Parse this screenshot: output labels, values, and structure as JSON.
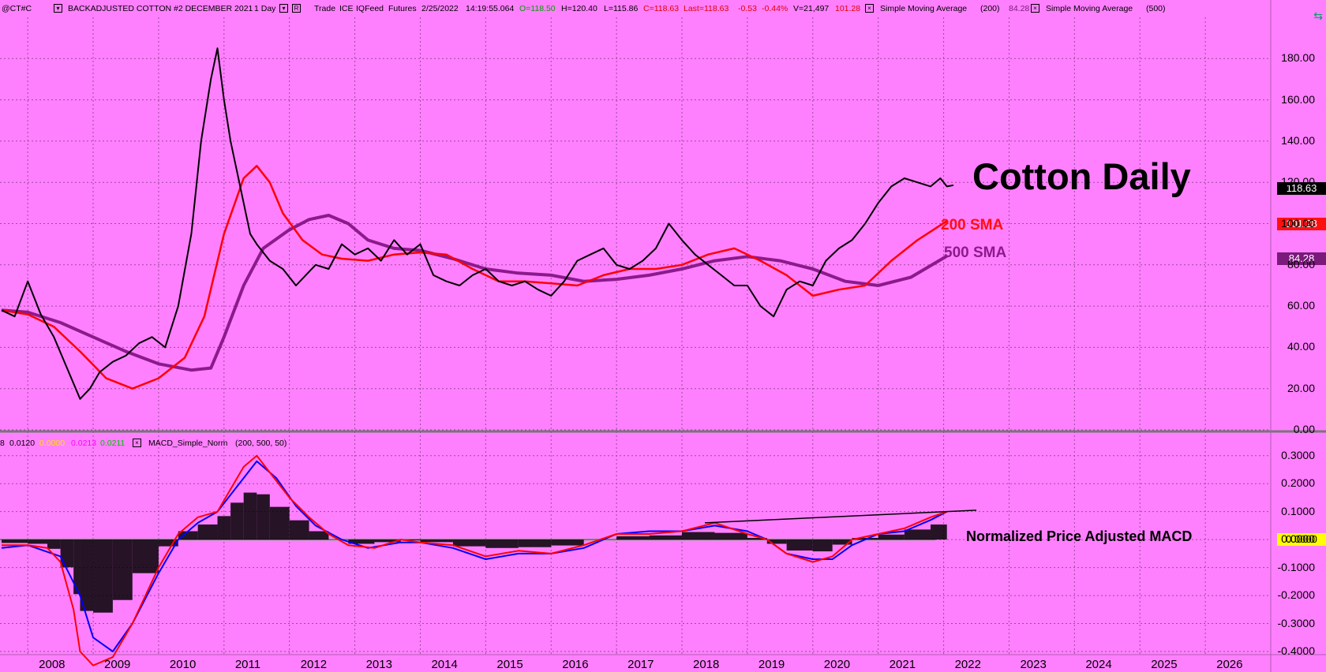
{
  "header": {
    "symbol": "@CT#C",
    "title": "BACKADJUSTED COTTON #2 DECEMBER 2021",
    "interval": "1 Day",
    "mode": "Trade",
    "exchange": "ICE",
    "feed": "IQFeed",
    "type": "Futures",
    "date": "2/25/2022",
    "time": "14:19:55.064",
    "open": "O=118.50",
    "high": "H=120.40",
    "low": "L=115.86",
    "close": "C=118.63",
    "last": "Last=118.63",
    "change": "-0.53",
    "change_pct": "-0.44%",
    "volume": "V=21,497",
    "sma200_value": "101.28",
    "sma1_label": "Simple Moving Average",
    "sma1_len": "(200)",
    "sma500_value": "84.28",
    "sma2_label": "Simple Moving Average",
    "sma2_len": "(500)"
  },
  "macd_header": {
    "v0": "8",
    "v1": "0.0120",
    "v2": "0.0000",
    "v3": "0.0213",
    "v4": "0.0211",
    "name": "MACD_Simple_Norm",
    "params": "(200, 500, 50)"
  },
  "annotations": {
    "title": "Cotton Daily",
    "sma200": "200 SMA",
    "sma500": "500 SMA",
    "macd": "Normalized Price Adjusted MACD"
  },
  "price_tags": {
    "last": "118.63",
    "sma200": "101.28",
    "sma500": "84.28",
    "macd": "0.0000"
  },
  "colors": {
    "background": "#ff80ff",
    "price": "#000000",
    "sma200": "#ff0000",
    "sma500": "#8b1a8b",
    "macd_line": "#ff0000",
    "signal_line": "#0000ff",
    "histogram": "#000000",
    "aux_magenta": "#ff00ff",
    "aux_green": "#00b000"
  },
  "chart_data": [
    {
      "type": "line",
      "title": "Cotton Daily",
      "ylim": [
        0,
        200
      ],
      "y_ticks": [
        "180.00",
        "160.00",
        "140.00",
        "120.00",
        "100.00",
        "80.00",
        "60.00",
        "40.00",
        "20.00",
        "0.00"
      ],
      "x_ticks": [
        "2008",
        "2009",
        "2010",
        "2011",
        "2012",
        "2013",
        "2014",
        "2015",
        "2016",
        "2017",
        "2018",
        "2019",
        "2020",
        "2021",
        "2022",
        "2023",
        "2024",
        "2025",
        "2026"
      ],
      "series": [
        {
          "name": "",
          "x": [
            2007.6,
            2007.8,
            2008.0,
            2008.2,
            2008.4,
            2008.6,
            2008.8,
            2008.95,
            2009.1,
            2009.3,
            2009.5,
            2009.7,
            2009.9,
            2010.1,
            2010.3,
            2010.5,
            2010.65,
            2010.8,
            2010.9,
            2011.0,
            2011.1,
            2011.2,
            2011.3,
            2011.4,
            2011.5,
            2011.7,
            2011.9,
            2012.1,
            2012.25,
            2012.4,
            2012.6,
            2012.8,
            2013.0,
            2013.2,
            2013.4,
            2013.6,
            2013.8,
            2014.0,
            2014.2,
            2014.4,
            2014.6,
            2014.8,
            2015.0,
            2015.2,
            2015.4,
            2015.6,
            2015.8,
            2016.0,
            2016.2,
            2016.4,
            2016.6,
            2016.8,
            2017.0,
            2017.2,
            2017.4,
            2017.6,
            2017.8,
            2018.0,
            2018.2,
            2018.4,
            2018.6,
            2018.8,
            2019.0,
            2019.2,
            2019.4,
            2019.6,
            2019.8,
            2020.0,
            2020.2,
            2020.4,
            2020.6,
            2020.8,
            2021.0,
            2021.2,
            2021.4,
            2021.6,
            2021.8,
            2021.95,
            2022.05,
            2022.15
          ],
          "values": [
            58,
            55,
            72,
            56,
            45,
            30,
            15,
            20,
            28,
            33,
            36,
            42,
            45,
            40,
            60,
            95,
            140,
            170,
            185,
            160,
            140,
            125,
            110,
            95,
            90,
            82,
            78,
            70,
            75,
            80,
            78,
            90,
            85,
            88,
            82,
            92,
            85,
            90,
            75,
            72,
            70,
            75,
            78,
            72,
            70,
            72,
            68,
            65,
            72,
            82,
            85,
            88,
            80,
            78,
            82,
            88,
            100,
            92,
            85,
            80,
            75,
            70,
            70,
            60,
            55,
            68,
            72,
            70,
            82,
            88,
            92,
            100,
            110,
            118,
            122,
            120,
            118,
            122,
            118,
            118.63
          ]
        },
        {
          "name": "200 SMA",
          "x": [
            2007.6,
            2008.0,
            2008.4,
            2008.8,
            2009.2,
            2009.6,
            2010.0,
            2010.4,
            2010.7,
            2011.0,
            2011.3,
            2011.5,
            2011.7,
            2011.9,
            2012.2,
            2012.5,
            2012.8,
            2013.2,
            2013.6,
            2014.0,
            2014.4,
            2014.8,
            2015.2,
            2015.6,
            2016.0,
            2016.4,
            2016.8,
            2017.2,
            2017.6,
            2018.0,
            2018.4,
            2018.8,
            2019.2,
            2019.6,
            2020.0,
            2020.4,
            2020.8,
            2021.2,
            2021.6,
            2022.05
          ],
          "values": [
            58,
            56,
            50,
            38,
            25,
            20,
            25,
            35,
            55,
            95,
            122,
            128,
            120,
            105,
            92,
            85,
            83,
            82,
            85,
            86,
            85,
            78,
            72,
            72,
            71,
            70,
            75,
            78,
            78,
            80,
            85,
            88,
            82,
            75,
            65,
            68,
            70,
            82,
            92,
            101.28
          ]
        },
        {
          "name": "500 SMA",
          "x": [
            2007.6,
            2008.0,
            2008.5,
            2009.0,
            2009.5,
            2010.0,
            2010.5,
            2010.8,
            2011.0,
            2011.3,
            2011.6,
            2012.0,
            2012.3,
            2012.6,
            2012.9,
            2013.2,
            2013.6,
            2014.0,
            2014.5,
            2015.0,
            2015.5,
            2016.0,
            2016.5,
            2017.0,
            2017.5,
            2018.0,
            2018.5,
            2019.0,
            2019.5,
            2020.0,
            2020.5,
            2021.0,
            2021.5,
            2022.05
          ],
          "values": [
            58,
            57,
            52,
            45,
            38,
            32,
            29,
            30,
            45,
            70,
            88,
            97,
            102,
            104,
            100,
            92,
            88,
            87,
            83,
            78,
            76,
            75,
            72,
            73,
            75,
            78,
            82,
            84,
            82,
            78,
            72,
            70,
            74,
            84.28
          ]
        }
      ]
    },
    {
      "type": "line",
      "title": "MACD_Simple_Norm (200, 500, 50)",
      "ylim": [
        -0.4,
        0.35
      ],
      "y_ticks": [
        "0.3000",
        "0.2000",
        "0.1000",
        "0.0000",
        "-0.1000",
        "-0.2000",
        "-0.3000",
        "-0.4000"
      ],
      "series": [
        {
          "name": "",
          "x": [
            2007.6,
            2008.0,
            2008.3,
            2008.5,
            2008.7,
            2008.8,
            2009.0,
            2009.3,
            2009.6,
            2010.0,
            2010.3,
            2010.6,
            2010.9,
            2011.1,
            2011.3,
            2011.5,
            2011.7,
            2012.0,
            2012.3,
            2012.6,
            2012.9,
            2013.3,
            2013.7,
            2014.0,
            2014.5,
            2015.0,
            2015.5,
            2016.0,
            2016.5,
            2017.0,
            2017.5,
            2018.0,
            2018.5,
            2019.0,
            2019.3,
            2019.6,
            2020.0,
            2020.3,
            2020.6,
            2021.0,
            2021.4,
            2021.8,
            2022.05
          ],
          "values": [
            -0.02,
            -0.02,
            -0.03,
            -0.08,
            -0.25,
            -0.4,
            -0.45,
            -0.42,
            -0.3,
            -0.1,
            0.02,
            0.08,
            0.1,
            0.18,
            0.26,
            0.3,
            0.24,
            0.15,
            0.08,
            0.02,
            -0.02,
            -0.03,
            0.0,
            -0.01,
            -0.02,
            -0.06,
            -0.04,
            -0.05,
            -0.02,
            0.02,
            0.02,
            0.03,
            0.06,
            0.02,
            0.0,
            -0.05,
            -0.08,
            -0.06,
            0.0,
            0.02,
            0.04,
            0.08,
            0.1
          ]
        },
        {
          "name": "",
          "x": [
            2007.6,
            2008.0,
            2008.5,
            2008.8,
            2009.0,
            2009.3,
            2009.6,
            2010.0,
            2010.3,
            2010.6,
            2010.9,
            2011.1,
            2011.3,
            2011.5,
            2011.8,
            2012.1,
            2012.4,
            2012.8,
            2013.2,
            2013.7,
            2014.0,
            2014.5,
            2015.0,
            2015.5,
            2016.0,
            2016.5,
            2017.0,
            2017.5,
            2018.0,
            2018.5,
            2019.0,
            2019.3,
            2019.6,
            2020.0,
            2020.3,
            2020.6,
            2021.0,
            2021.4,
            2021.8,
            2022.05
          ],
          "values": [
            -0.03,
            -0.02,
            -0.06,
            -0.2,
            -0.35,
            -0.4,
            -0.3,
            -0.12,
            0.0,
            0.06,
            0.1,
            0.16,
            0.22,
            0.28,
            0.22,
            0.12,
            0.05,
            0.0,
            -0.03,
            -0.01,
            -0.01,
            -0.03,
            -0.07,
            -0.05,
            -0.05,
            -0.03,
            0.02,
            0.03,
            0.03,
            0.05,
            0.03,
            0.0,
            -0.05,
            -0.07,
            -0.07,
            -0.02,
            0.02,
            0.03,
            0.07,
            0.1
          ]
        }
      ]
    }
  ]
}
